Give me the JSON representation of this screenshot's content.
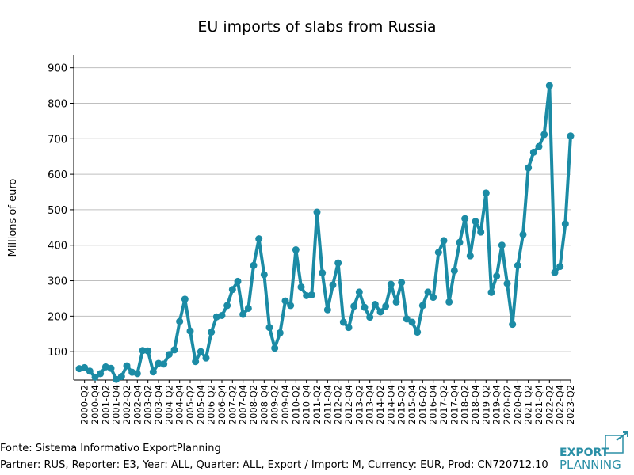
{
  "chart_data": {
    "type": "line",
    "title": "EU imports of slabs from Russia",
    "ylabel": "Millions of euro",
    "footer": [
      "Fonte: Sistema Informativo ExportPlanning",
      "Partner: RUS, Reporter: E3, Year: ALL, Quarter: ALL, Export / Import: M, Currency: EUR, Prod: CN720712.10"
    ],
    "logo": [
      "EXPORT",
      "PLANNING"
    ],
    "categories": [
      null,
      "2000-Q2",
      null,
      "2000-Q4",
      null,
      "2001-Q2",
      null,
      "2001-Q4",
      null,
      "2002-Q2",
      null,
      "2002-Q4",
      null,
      "2003-Q2",
      null,
      "2003-Q4",
      null,
      "2004-Q2",
      null,
      "2004-Q4",
      null,
      "2005-Q2",
      null,
      "2005-Q4",
      null,
      "2006-Q2",
      null,
      "2006-Q4",
      null,
      "2007-Q2",
      null,
      "2007-Q4",
      null,
      "2008-Q2",
      null,
      "2008-Q4",
      null,
      "2009-Q2",
      null,
      "2009-Q4",
      null,
      "2010-Q2",
      null,
      "2010-Q4",
      null,
      "2011-Q2",
      null,
      "2011-Q4",
      null,
      "2012-Q2",
      null,
      "2012-Q4",
      null,
      "2013-Q2",
      null,
      "2013-Q4",
      null,
      "2014-Q2",
      null,
      "2014-Q4",
      null,
      "2015-Q2",
      null,
      "2015-Q4",
      null,
      "2016-Q2",
      null,
      "2016-Q4",
      null,
      "2017-Q2",
      null,
      "2017-Q4",
      null,
      "2018-Q2",
      null,
      "2018-Q4",
      null,
      "2019-Q2",
      null,
      "2019-Q4",
      null,
      "2020-Q2",
      null,
      "2020-Q4",
      null,
      "2021-Q2",
      null,
      "2021-Q4",
      null,
      "2022-Q2",
      null,
      "2022-Q4",
      null,
      "2023-Q2"
    ],
    "series": [
      {
        "name": "EU imports",
        "color": "#1b8ba5",
        "values": [
          52,
          55,
          45,
          28,
          38,
          57,
          53,
          22,
          30,
          60,
          42,
          38,
          103,
          102,
          43,
          67,
          65,
          92,
          105,
          185,
          248,
          158,
          72,
          100,
          82,
          155,
          198,
          202,
          230,
          275,
          298,
          205,
          222,
          343,
          418,
          317,
          168,
          110,
          153,
          243,
          230,
          387,
          282,
          258,
          260,
          493,
          322,
          218,
          288,
          350,
          183,
          168,
          228,
          268,
          225,
          197,
          233,
          212,
          228,
          290,
          240,
          295,
          192,
          183,
          155,
          230,
          268,
          253,
          380,
          413,
          240,
          328,
          408,
          475,
          370,
          467,
          437,
          547,
          267,
          313,
          400,
          292,
          177,
          343,
          430,
          618,
          662,
          678,
          712,
          850,
          323,
          340,
          460,
          708
        ]
      }
    ],
    "ylim": [
      20,
      935
    ],
    "yticks": [
      100,
      200,
      300,
      400,
      500,
      600,
      700,
      800,
      900
    ],
    "grid": true
  }
}
